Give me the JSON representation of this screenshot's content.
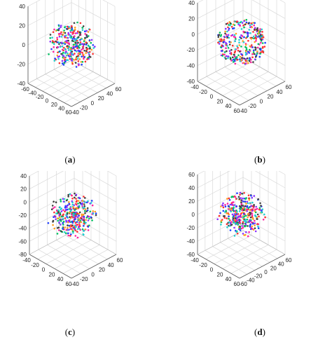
{
  "figure": {
    "panels": [
      {
        "id": "a",
        "label_open": "(",
        "label": "a",
        "label_close": ")"
      },
      {
        "id": "b",
        "label_open": "(",
        "label": "b",
        "label_close": ")"
      },
      {
        "id": "c",
        "label_open": "(",
        "label": "c",
        "label_close": ")"
      },
      {
        "id": "d",
        "label_open": "(",
        "label": "d",
        "label_close": ")"
      }
    ]
  },
  "chart_data": [
    {
      "type": "scatter",
      "subtype": "3d",
      "grid": true,
      "shape": "sphere-cloud",
      "xlim": [
        -40,
        60
      ],
      "ylim": [
        -60,
        60
      ],
      "zlim": [
        -40,
        40
      ],
      "x_ticks": [
        "-40",
        "-20",
        "0",
        "20",
        "40",
        "60"
      ],
      "y_ticks": [
        "-60",
        "-40",
        "-20",
        "0",
        "20",
        "40",
        "60"
      ],
      "z_ticks": [
        "-40",
        "-20",
        "0",
        "20",
        "40"
      ],
      "series_colors": [
        "#1f3fff",
        "#00c060",
        "#ff20a0",
        "#20d0d0",
        "#8a30ff",
        "#404040",
        "#ffa020",
        "#ff3030"
      ]
    },
    {
      "type": "scatter",
      "subtype": "3d",
      "grid": true,
      "shape": "spherical-shell",
      "xlim": [
        -40,
        60
      ],
      "ylim": [
        -40,
        60
      ],
      "zlim": [
        -60,
        40
      ],
      "x_ticks": [
        "-40",
        "-20",
        "0",
        "20",
        "40",
        "60"
      ],
      "y_ticks": [
        "-40",
        "-20",
        "0",
        "20",
        "40",
        "60"
      ],
      "z_ticks": [
        "-60",
        "-40",
        "-20",
        "0",
        "20",
        "40"
      ],
      "series_colors": [
        "#1f3fff",
        "#00c060",
        "#ff20a0",
        "#20d0d0",
        "#8a30ff",
        "#404040",
        "#ffa020",
        "#ff3030"
      ]
    },
    {
      "type": "scatter",
      "subtype": "3d",
      "grid": true,
      "shape": "sphere-cloud",
      "xlim": [
        -40,
        60
      ],
      "ylim": [
        -40,
        60
      ],
      "zlim": [
        -80,
        40
      ],
      "x_ticks": [
        "-40",
        "-20",
        "0",
        "20",
        "40",
        "60"
      ],
      "y_ticks": [
        "-40",
        "-20",
        "0",
        "20",
        "40",
        "60"
      ],
      "z_ticks": [
        "-80",
        "-60",
        "-40",
        "-20",
        "0",
        "20",
        "40"
      ],
      "series_colors": [
        "#1f3fff",
        "#00c060",
        "#ff20a0",
        "#20d0d0",
        "#8a30ff",
        "#404040",
        "#ffa020",
        "#ff3030"
      ]
    },
    {
      "type": "scatter",
      "subtype": "3d",
      "grid": true,
      "shape": "sphere-cloud",
      "xlim": [
        -60,
        60
      ],
      "ylim": [
        -40,
        60
      ],
      "zlim": [
        -60,
        60
      ],
      "x_ticks": [
        "-60",
        "-40",
        "-20",
        "0",
        "20",
        "40",
        "60"
      ],
      "y_ticks": [
        "-40",
        "-20",
        "0",
        "20",
        "40",
        "60"
      ],
      "z_ticks": [
        "-60",
        "-40",
        "-20",
        "0",
        "20",
        "40",
        "60"
      ],
      "series_colors": [
        "#1f3fff",
        "#00c060",
        "#ff20a0",
        "#20d0d0",
        "#8a30ff",
        "#404040",
        "#ffa020",
        "#ff3030"
      ]
    }
  ]
}
